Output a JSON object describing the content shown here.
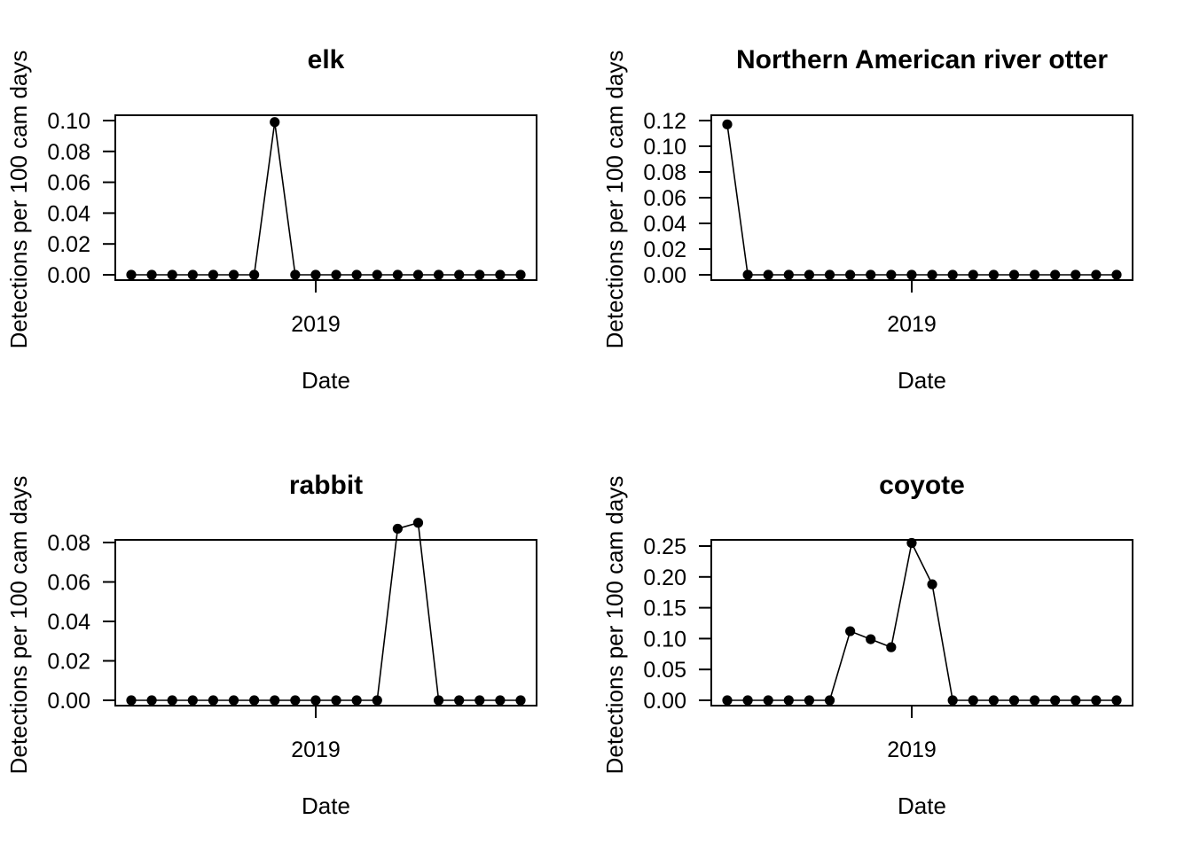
{
  "chart_data": [
    {
      "type": "line",
      "title": "elk",
      "xlabel": "Date",
      "ylabel": "Detections per 100 cam days",
      "x_tick_labels": [
        "2019"
      ],
      "y_ticks": [
        "0.00",
        "0.02",
        "0.04",
        "0.06",
        "0.08",
        "0.10"
      ],
      "ylim": [
        0,
        0.1
      ],
      "grid": false,
      "series": [
        {
          "values": [
            0,
            0,
            0,
            0,
            0,
            0,
            0,
            0.099,
            0,
            0,
            0,
            0,
            0,
            0,
            0,
            0,
            0,
            0,
            0,
            0
          ]
        }
      ]
    },
    {
      "type": "line",
      "title": "Northern American river otter",
      "xlabel": "Date",
      "ylabel": "Detections per 100 cam days",
      "x_tick_labels": [
        "2019"
      ],
      "y_ticks": [
        "0.00",
        "0.02",
        "0.04",
        "0.06",
        "0.08",
        "0.10",
        "0.12"
      ],
      "ylim": [
        0,
        0.12
      ],
      "grid": false,
      "series": [
        {
          "values": [
            0.117,
            0,
            0,
            0,
            0,
            0,
            0,
            0,
            0,
            0,
            0,
            0,
            0,
            0,
            0,
            0,
            0,
            0,
            0,
            0
          ]
        }
      ]
    },
    {
      "type": "line",
      "title": "rabbit",
      "xlabel": "Date",
      "ylabel": "Detections per 100 cam days",
      "x_tick_labels": [
        "2019"
      ],
      "y_ticks": [
        "0.00",
        "0.02",
        "0.04",
        "0.06",
        "0.08"
      ],
      "ylim": [
        0,
        0.08
      ],
      "grid": false,
      "series": [
        {
          "values": [
            0,
            0,
            0,
            0,
            0,
            0,
            0,
            0,
            0,
            0,
            0,
            0,
            0,
            0.087,
            0.09,
            0,
            0,
            0,
            0,
            0
          ]
        }
      ]
    },
    {
      "type": "line",
      "title": "coyote",
      "xlabel": "Date",
      "ylabel": "Detections per 100 cam days",
      "x_tick_labels": [
        "2019"
      ],
      "y_ticks": [
        "0.00",
        "0.05",
        "0.10",
        "0.15",
        "0.20",
        "0.25"
      ],
      "ylim": [
        0,
        0.25
      ],
      "grid": false,
      "series": [
        {
          "values": [
            0,
            0,
            0,
            0,
            0,
            0,
            0.112,
            0.099,
            0.086,
            0.255,
            0.188,
            0,
            0,
            0,
            0,
            0,
            0,
            0,
            0,
            0
          ]
        }
      ]
    }
  ]
}
